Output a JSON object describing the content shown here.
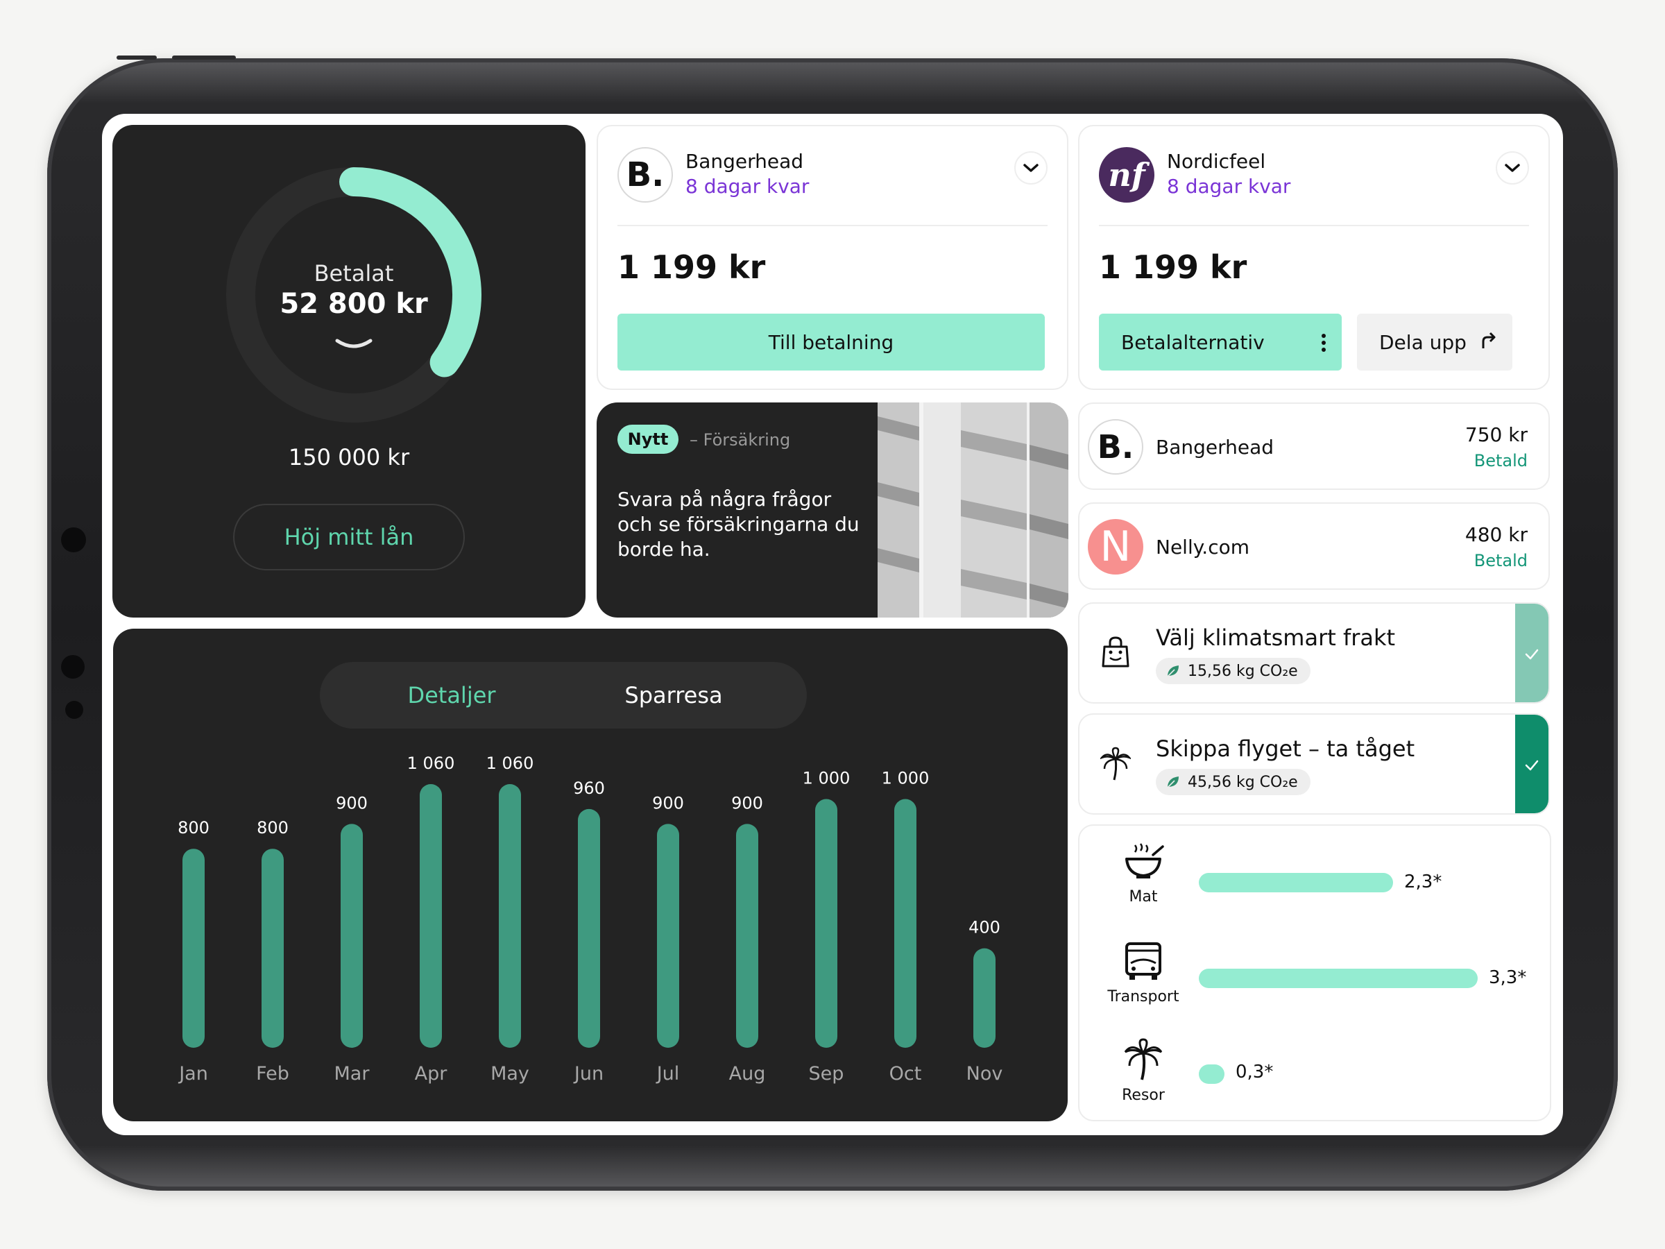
{
  "loan": {
    "paid_label": "Betalat",
    "paid_amount": "52 800 kr",
    "total_amount": "150 000 kr",
    "raise_button": "Höj mitt lån",
    "progress_fraction": 0.352
  },
  "merchants": [
    {
      "logo_text": "B.",
      "name": "Bangerhead",
      "days_left": "8 dagar kvar",
      "price": "1 199 kr",
      "pay_button": "Till betalning"
    },
    {
      "logo_text": "nf",
      "name": "Nordicfeel",
      "days_left": "8 dagar kvar",
      "price": "1 199 kr",
      "options_button": "Betalalternativ",
      "split_button": "Dela upp"
    }
  ],
  "insurance": {
    "badge": "Nytt",
    "category": "– Försäkring",
    "text": "Svara på några frågor och se försäkringarna du borde ha."
  },
  "purchases": [
    {
      "logo_text": "B.",
      "name": "Bangerhead",
      "amount": "750 kr",
      "status": "Betald"
    },
    {
      "logo_text": "N",
      "name": "Nelly.com",
      "amount": "480 kr",
      "status": "Betald"
    }
  ],
  "climate": [
    {
      "icon": "shopping-bag-icon",
      "title": "Välj klimatsmart frakt",
      "co2": "15,56 kg CO₂e"
    },
    {
      "icon": "palm-tree-icon",
      "title": "Skippa flyget – ta tåget",
      "co2": "45,56 kg CO₂e"
    }
  ],
  "footprint": [
    {
      "icon": "food-bowl-icon",
      "label": "Mat",
      "value_text": "2,3*",
      "value": 2.3
    },
    {
      "icon": "bus-icon",
      "label": "Transport",
      "value_text": "3,3*",
      "value": 3.3
    },
    {
      "icon": "palm-tree-icon",
      "label": "Resor",
      "value_text": "0,3*",
      "value": 0.3
    }
  ],
  "tabs": {
    "details": "Detaljer",
    "savings": "Sparresa"
  },
  "colors": {
    "accent": "#94ecd1",
    "accent_text": "#5fd6ad",
    "bar": "#3f9a80",
    "dark_panel": "#232323",
    "purple": "#7a34d6",
    "status_green": "#149678"
  },
  "chart_data": {
    "type": "bar",
    "categories": [
      "Jan",
      "Feb",
      "Mar",
      "Apr",
      "May",
      "Jun",
      "Jul",
      "Aug",
      "Sep",
      "Oct",
      "Nov"
    ],
    "values": [
      800,
      800,
      900,
      1060,
      1060,
      960,
      900,
      900,
      1000,
      1000,
      400
    ],
    "value_labels": [
      "800",
      "800",
      "900",
      "1 060",
      "1 060",
      "960",
      "900",
      "900",
      "1 000",
      "1 000",
      "400"
    ],
    "title": "",
    "xlabel": "",
    "ylabel": "",
    "ylim": [
      0,
      1100
    ],
    "grid": false
  }
}
